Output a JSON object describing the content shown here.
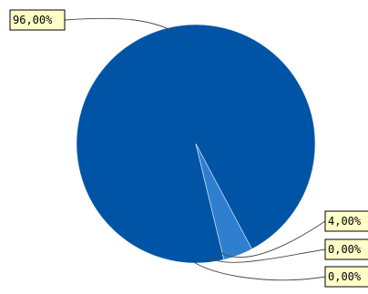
{
  "chart_data": {
    "type": "pie",
    "slices": [
      {
        "value": 96.0,
        "label": "96,00%",
        "color": "#0054A6"
      },
      {
        "value": 4.0,
        "label": "4,00%",
        "color": "#2F7FD1"
      },
      {
        "value": 0.0,
        "label": "0,00%",
        "color": "#0054A6"
      },
      {
        "value": 0.0,
        "label": "0,00%",
        "color": "#0054A6"
      }
    ],
    "callout_background": "#FFFFC8",
    "callout_border": "#000000",
    "leader_color": "#4A4A4A"
  }
}
